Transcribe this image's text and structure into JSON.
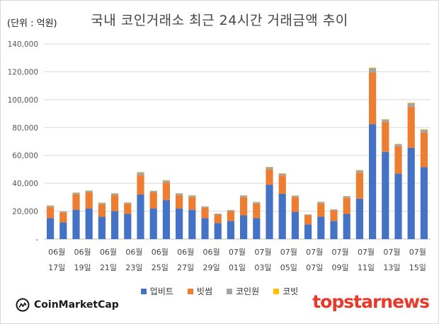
{
  "unit_label": "(단위 : 억원)",
  "chart_data": {
    "type": "bar",
    "stacked": true,
    "title": "국내 코인거래소 최근 24시간 거래금액 추이",
    "ylim": [
      0,
      140000
    ],
    "yticks": [
      "-",
      "20,000",
      "40,000",
      "60,000",
      "80,000",
      "100,000",
      "120,000",
      "140,000"
    ],
    "grid": true,
    "legend_position": "bottom",
    "x_label_pairs": [
      [
        "06월",
        "17일"
      ],
      [
        "06월",
        "19일"
      ],
      [
        "06월",
        "21일"
      ],
      [
        "06월",
        "23일"
      ],
      [
        "06월",
        "25일"
      ],
      [
        "06월",
        "27일"
      ],
      [
        "06월",
        "29일"
      ],
      [
        "07월",
        "01일"
      ],
      [
        "07월",
        "03일"
      ],
      [
        "07월",
        "05일"
      ],
      [
        "07월",
        "07일"
      ],
      [
        "07월",
        "09일"
      ],
      [
        "07월",
        "11일"
      ],
      [
        "07월",
        "13일"
      ],
      [
        "07월",
        "15일"
      ]
    ],
    "series": [
      {
        "name": "업비트",
        "color": "#4472c4",
        "values": [
          15000,
          12000,
          21000,
          22000,
          16000,
          20000,
          18000,
          32000,
          22000,
          28000,
          22000,
          21000,
          15000,
          11500,
          13000,
          17000,
          15000,
          39000,
          32500,
          19500,
          10500,
          16000,
          13000,
          18000,
          29000,
          82500,
          62500,
          47000,
          65500,
          51500
        ]
      },
      {
        "name": "빗썸",
        "color": "#ed7d31",
        "values": [
          8000,
          7000,
          11000,
          11500,
          9000,
          11500,
          7500,
          14000,
          11500,
          12500,
          9500,
          9000,
          7500,
          6000,
          7000,
          13000,
          10500,
          11000,
          13000,
          10500,
          6500,
          9500,
          7500,
          11500,
          18500,
          37000,
          21500,
          19500,
          29500,
          25000
        ]
      },
      {
        "name": "코인원",
        "color": "#a5a5a5",
        "values": [
          1000,
          800,
          1200,
          1200,
          1000,
          1200,
          800,
          1800,
          1000,
          1500,
          1200,
          1200,
          900,
          700,
          800,
          1200,
          1000,
          1500,
          1400,
          1100,
          700,
          1100,
          800,
          1200,
          1800,
          3000,
          1700,
          1500,
          2400,
          2000
        ]
      },
      {
        "name": "코빗",
        "color": "#ffc000",
        "values": [
          200,
          100,
          200,
          200,
          200,
          200,
          100,
          300,
          200,
          300,
          200,
          200,
          100,
          100,
          100,
          200,
          200,
          300,
          300,
          200,
          100,
          200,
          100,
          200,
          300,
          500,
          300,
          300,
          400,
          300
        ]
      }
    ]
  },
  "logos": {
    "coinmarketcap": "CoinMarketCap",
    "topstarnews": "topstarnews"
  }
}
